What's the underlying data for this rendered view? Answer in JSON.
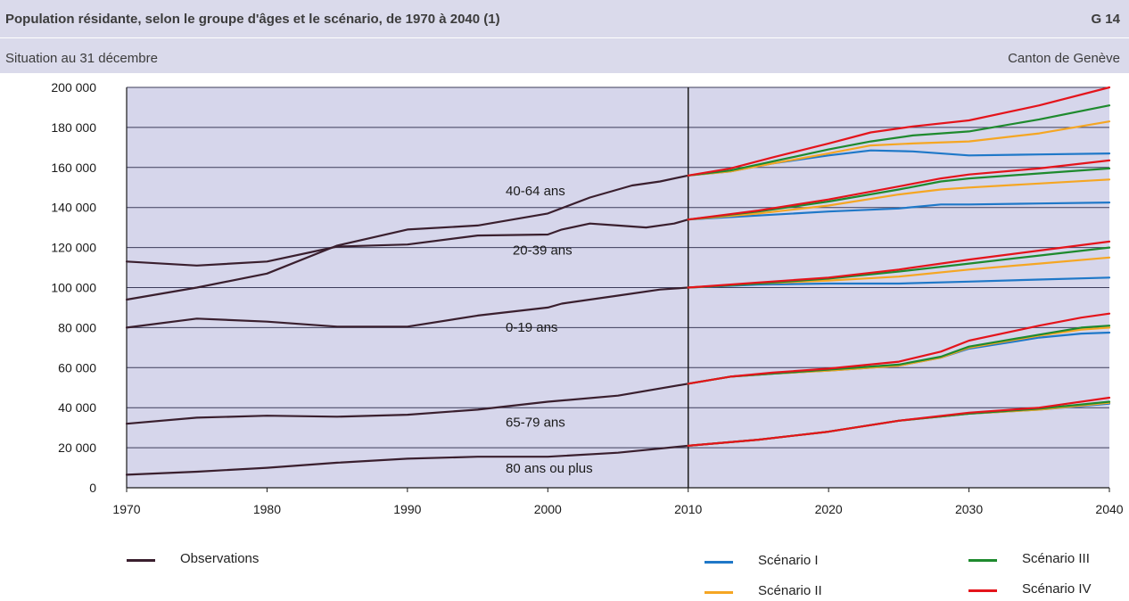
{
  "header": {
    "title": "Population résidante, selon le groupe d'âges et le scénario, de 1970 à 2040 (1)",
    "code": "G 14",
    "subtitle": "Situation au 31 décembre",
    "region": "Canton de Genève"
  },
  "legend": {
    "observations": "Observations",
    "scenario1": "Scénario I",
    "scenario2": "Scénario II",
    "scenario3": "Scénario III",
    "scenario4": "Scénario IV"
  },
  "chart_data": {
    "type": "line",
    "title": "Population résidante, selon le groupe d'âges et le scénario, de 1970 à 2040 (1)",
    "xlim": [
      1970,
      2040
    ],
    "ylim": [
      0,
      200000
    ],
    "x_ticks": [
      1970,
      1980,
      1990,
      2000,
      2010,
      2020,
      2030,
      2040
    ],
    "y_ticks": [
      0,
      20000,
      40000,
      60000,
      80000,
      100000,
      120000,
      140000,
      160000,
      180000,
      200000
    ],
    "y_tick_labels": [
      "0",
      "20 000",
      "40 000",
      "60 000",
      "80 000",
      "100 000",
      "120 000",
      "140 000",
      "160 000",
      "180 000",
      "200 000"
    ],
    "grid": "horizontal",
    "projection_start": 2010,
    "colors": {
      "observations": "#3a1f2e",
      "scenario1": "#1f78c8",
      "scenario2": "#f5a623",
      "scenario3": "#1e8a2e",
      "scenario4": "#e4141b"
    },
    "groups": [
      {
        "name": "40-64 ans",
        "observed": {
          "x": [
            1970,
            1975,
            1980,
            1985,
            1990,
            1995,
            2000,
            2003,
            2006,
            2008,
            2010
          ],
          "y": [
            94000,
            100000,
            107000,
            121000,
            129000,
            131000,
            137000,
            145000,
            151000,
            153000,
            156000
          ]
        },
        "scenarios": {
          "scenario1": {
            "x": [
              2010,
              2013,
              2016,
              2020,
              2023,
              2026,
              2030,
              2035,
              2040
            ],
            "y": [
              156000,
              158000,
              162000,
              166000,
              168500,
              168000,
              166000,
              166500,
              167000
            ]
          },
          "scenario2": {
            "x": [
              2010,
              2013,
              2016,
              2020,
              2023,
              2026,
              2030,
              2035,
              2040
            ],
            "y": [
              156000,
              158000,
              162000,
              167000,
              171000,
              172000,
              173000,
              177000,
              183000
            ]
          },
          "scenario3": {
            "x": [
              2010,
              2013,
              2016,
              2020,
              2023,
              2026,
              2030,
              2035,
              2040
            ],
            "y": [
              156000,
              158500,
              163000,
              169000,
              173000,
              176000,
              178000,
              184000,
              191000
            ]
          },
          "scenario4": {
            "x": [
              2010,
              2013,
              2016,
              2020,
              2023,
              2026,
              2030,
              2035,
              2040
            ],
            "y": [
              156000,
              159500,
              165000,
              172000,
              177500,
              180500,
              183500,
              191000,
              200000
            ]
          }
        }
      },
      {
        "name": "20-39 ans",
        "observed": {
          "x": [
            1970,
            1975,
            1980,
            1985,
            1990,
            1995,
            2000,
            2001,
            2003,
            2005,
            2007,
            2009,
            2010
          ],
          "y": [
            113000,
            111000,
            113000,
            120500,
            121500,
            126000,
            126500,
            129000,
            132000,
            131000,
            130000,
            132000,
            134000
          ]
        },
        "scenarios": {
          "scenario1": {
            "x": [
              2010,
              2015,
              2020,
              2025,
              2028,
              2030,
              2035,
              2040
            ],
            "y": [
              134000,
              136000,
              138000,
              139500,
              141500,
              141500,
              142000,
              142500
            ]
          },
          "scenario2": {
            "x": [
              2010,
              2015,
              2020,
              2025,
              2028,
              2030,
              2035,
              2040
            ],
            "y": [
              134000,
              137000,
              141000,
              146500,
              149000,
              150000,
              152000,
              154000
            ]
          },
          "scenario3": {
            "x": [
              2010,
              2015,
              2020,
              2025,
              2028,
              2030,
              2035,
              2040
            ],
            "y": [
              134000,
              138000,
              143000,
              149000,
              153000,
              154500,
              157000,
              159500
            ]
          },
          "scenario4": {
            "x": [
              2010,
              2015,
              2020,
              2025,
              2028,
              2030,
              2035,
              2040
            ],
            "y": [
              134000,
              138500,
              144000,
              150500,
              154500,
              156500,
              159500,
              163500
            ]
          }
        }
      },
      {
        "name": "0-19 ans",
        "observed": {
          "x": [
            1970,
            1975,
            1980,
            1985,
            1990,
            1995,
            2000,
            2001,
            2005,
            2008,
            2010
          ],
          "y": [
            80000,
            84500,
            83000,
            80500,
            80500,
            86000,
            90000,
            92000,
            96000,
            99000,
            100000
          ]
        },
        "scenarios": {
          "scenario1": {
            "x": [
              2010,
              2015,
              2020,
              2025,
              2030,
              2035,
              2040
            ],
            "y": [
              100000,
              101500,
              102000,
              102000,
              103000,
              104000,
              105000
            ]
          },
          "scenario2": {
            "x": [
              2010,
              2015,
              2020,
              2025,
              2030,
              2035,
              2040
            ],
            "y": [
              100000,
              102000,
              103500,
              105500,
              109000,
              112000,
              115000
            ]
          },
          "scenario3": {
            "x": [
              2010,
              2015,
              2020,
              2025,
              2030,
              2035,
              2040
            ],
            "y": [
              100000,
              102000,
              104500,
              108000,
              112000,
              116000,
              120000
            ]
          },
          "scenario4": {
            "x": [
              2010,
              2015,
              2020,
              2025,
              2030,
              2035,
              2040
            ],
            "y": [
              100000,
              102500,
              105000,
              109000,
              114000,
              118500,
              123000
            ]
          }
        }
      },
      {
        "name": "65-79 ans",
        "observed": {
          "x": [
            1970,
            1975,
            1980,
            1985,
            1990,
            1995,
            2000,
            2005,
            2010
          ],
          "y": [
            32000,
            35000,
            36000,
            35500,
            36500,
            39000,
            43000,
            46000,
            52000
          ]
        },
        "scenarios": {
          "scenario1": {
            "x": [
              2010,
              2013,
              2016,
              2020,
              2025,
              2028,
              2030,
              2035,
              2038,
              2040
            ],
            "y": [
              52000,
              55500,
              57000,
              58500,
              61000,
              65000,
              69500,
              75000,
              77000,
              77500
            ]
          },
          "scenario2": {
            "x": [
              2010,
              2013,
              2016,
              2020,
              2025,
              2028,
              2030,
              2035,
              2038,
              2040
            ],
            "y": [
              52000,
              55500,
              57000,
              58500,
              61000,
              65000,
              70000,
              76000,
              79000,
              80000
            ]
          },
          "scenario3": {
            "x": [
              2010,
              2013,
              2016,
              2020,
              2025,
              2028,
              2030,
              2035,
              2038,
              2040
            ],
            "y": [
              52000,
              55500,
              57000,
              59000,
              61500,
              65500,
              70500,
              76500,
              80000,
              81000
            ]
          },
          "scenario4": {
            "x": [
              2010,
              2013,
              2016,
              2020,
              2025,
              2028,
              2030,
              2035,
              2038,
              2040
            ],
            "y": [
              52000,
              55500,
              57500,
              59500,
              63000,
              68000,
              73500,
              81000,
              85000,
              87000
            ]
          }
        }
      },
      {
        "name": "80 ans ou plus",
        "observed": {
          "x": [
            1970,
            1975,
            1980,
            1985,
            1990,
            1995,
            2000,
            2005,
            2010
          ],
          "y": [
            6500,
            8000,
            10000,
            12500,
            14500,
            15500,
            15500,
            17500,
            21000
          ]
        },
        "scenarios": {
          "scenario1": {
            "x": [
              2010,
              2015,
              2020,
              2025,
              2030,
              2035,
              2040
            ],
            "y": [
              21000,
              24000,
              28000,
              33500,
              37000,
              39000,
              42000
            ]
          },
          "scenario2": {
            "x": [
              2010,
              2015,
              2020,
              2025,
              2030,
              2035,
              2040
            ],
            "y": [
              21000,
              24000,
              28000,
              33500,
              37000,
              39000,
              42500
            ]
          },
          "scenario3": {
            "x": [
              2010,
              2015,
              2020,
              2025,
              2030,
              2035,
              2040
            ],
            "y": [
              21000,
              24000,
              28000,
              33500,
              37000,
              39500,
              43000
            ]
          },
          "scenario4": {
            "x": [
              2010,
              2015,
              2020,
              2025,
              2030,
              2035,
              2040
            ],
            "y": [
              21000,
              24000,
              28000,
              33500,
              37500,
              40000,
              45000
            ]
          }
        }
      }
    ],
    "annotations": [
      {
        "text": "40-64 ans",
        "x": 1997,
        "y": 146000
      },
      {
        "text": "20-39 ans",
        "x": 1997.5,
        "y": 116500
      },
      {
        "text": "0-19 ans",
        "x": 1997,
        "y": 78000
      },
      {
        "text": "65-79 ans",
        "x": 1997,
        "y": 30500
      },
      {
        "text": "80 ans ou plus",
        "x": 1997,
        "y": 7500
      }
    ]
  }
}
